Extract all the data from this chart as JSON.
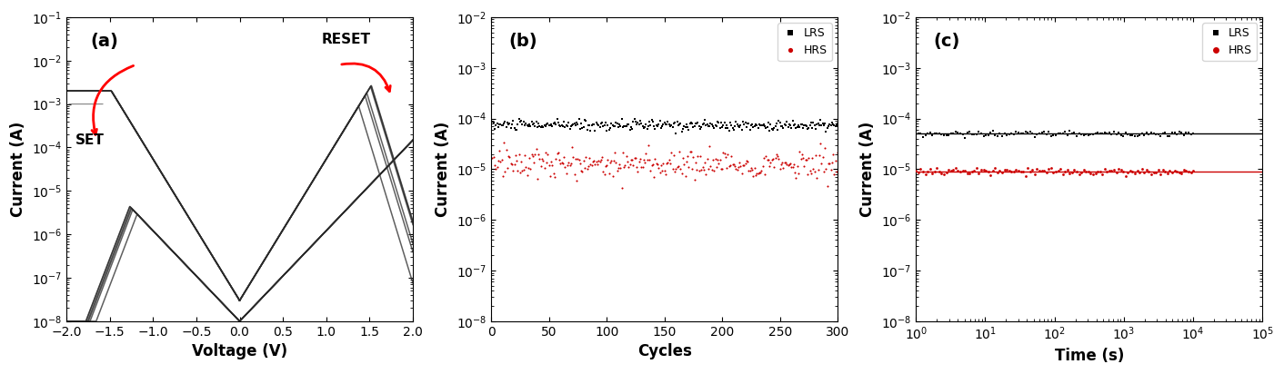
{
  "panel_a": {
    "label": "(a)",
    "xlabel": "Voltage (V)",
    "ylabel": "Current (A)",
    "xlim": [
      -2,
      2
    ],
    "ylim_log": [
      -8,
      -1
    ],
    "arrow_set_text": "SET",
    "arrow_reset_text": "RESET",
    "curve_color": "#2a2a2a",
    "n_curves": 6
  },
  "panel_b": {
    "label": "(b)",
    "xlabel": "Cycles",
    "ylabel": "Current (A)",
    "xlim": [
      0,
      300
    ],
    "ylim_log": [
      -8,
      -2
    ],
    "lrs_level": 7.5e-05,
    "hrs_level": 1.3e-05,
    "lrs_noise": 0.12,
    "hrs_noise": 0.35,
    "lrs_color": "#000000",
    "hrs_color": "#cc0000",
    "n_points": 300
  },
  "panel_c": {
    "label": "(c)",
    "xlabel": "Time (s)",
    "ylabel": "Current (A)",
    "xlim_log": [
      0,
      5
    ],
    "ylim_log": [
      -8,
      -2
    ],
    "lrs_level": 5e-05,
    "hrs_level": 9e-06,
    "lrs_color": "#000000",
    "hrs_color": "#cc0000",
    "n_points": 120
  },
  "legend_lrs": "LRS",
  "legend_hrs": "HRS",
  "background_color": "#ffffff",
  "figsize": [
    14.12,
    4.12
  ],
  "dpi": 100
}
